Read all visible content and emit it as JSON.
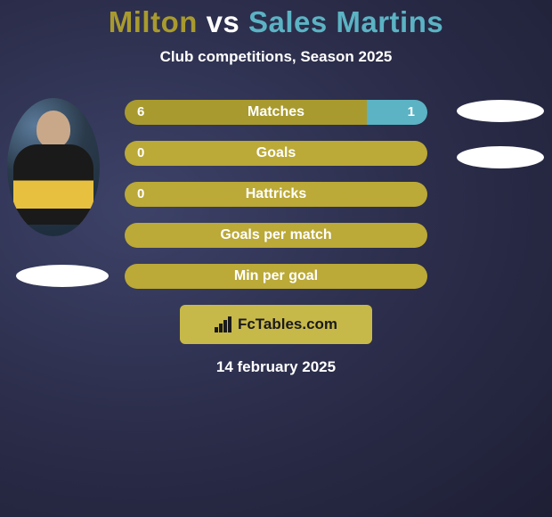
{
  "title": {
    "player_a": "Milton",
    "vs": "vs",
    "player_b": "Sales Martins",
    "color_a": "#a89a2e",
    "color_vs": "#ffffff",
    "color_b": "#5bb3c4"
  },
  "subtitle": "Club competitions, Season 2025",
  "colors": {
    "bar_a": "#a89a2e",
    "bar_b": "#5bb3c4",
    "bar_neutral": "#bba938",
    "brand_bg": "#c7b84a"
  },
  "stats": [
    {
      "label": "Matches",
      "a": "6",
      "b": "1",
      "a_width": 80,
      "b_width": 20
    },
    {
      "label": "Goals",
      "a": "0",
      "b": "",
      "a_width": 100,
      "b_width": 0
    },
    {
      "label": "Hattricks",
      "a": "0",
      "b": "",
      "a_width": 100,
      "b_width": 0
    },
    {
      "label": "Goals per match",
      "a": "",
      "b": "",
      "a_width": 100,
      "b_width": 0
    },
    {
      "label": "Min per goal",
      "a": "",
      "b": "",
      "a_width": 100,
      "b_width": 0
    }
  ],
  "brand": "FcTables.com",
  "date": "14 february 2025"
}
